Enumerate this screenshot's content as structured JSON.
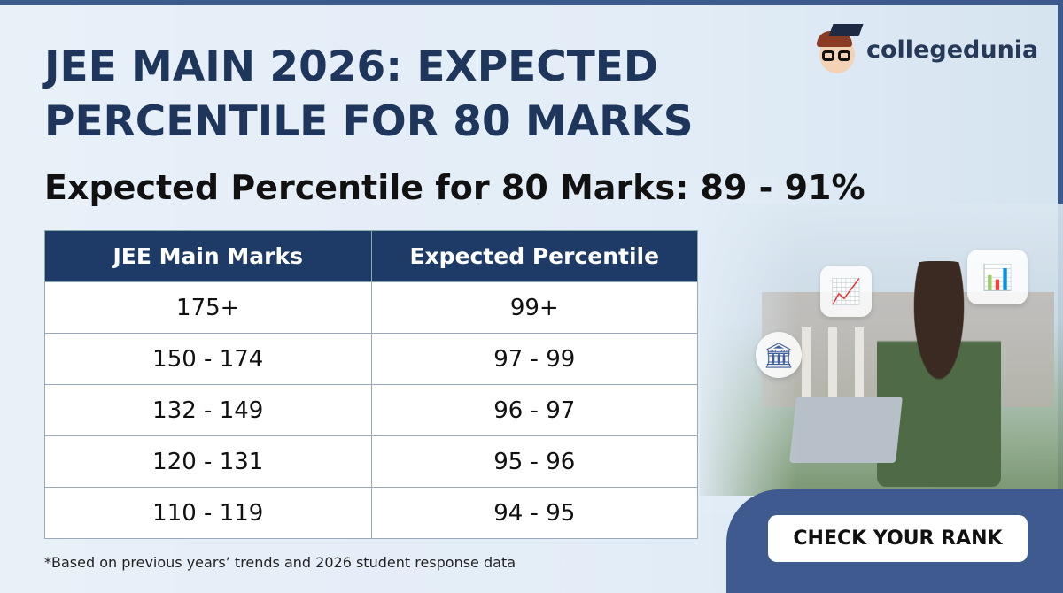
{
  "title": "JEE MAIN 2026: EXPECTED PERCENTILE FOR 80 MARKS",
  "title_line1": "JEE MAIN 2026: EXPECTED",
  "title_line2": "PERCENTILE FOR 80 MARKS",
  "subtitle": "Expected Percentile for 80 Marks: 89 - 91%",
  "logo": {
    "text": "collegedunia"
  },
  "table": {
    "headers": [
      "JEE Main Marks",
      "Expected Percentile"
    ],
    "rows": [
      [
        "175+",
        "99+"
      ],
      [
        "150 - 174",
        "97 - 99"
      ],
      [
        "132 - 149",
        "96 - 97"
      ],
      [
        "120 - 131",
        "95 - 96"
      ],
      [
        "110 - 119",
        "94 - 95"
      ]
    ]
  },
  "footnote": "*Based on previous years’ trends and 2026 student response data",
  "cta": "CHECK YOUR RANK",
  "colors": {
    "navy": "#1e365c",
    "header_bg": "#1e3a66",
    "panel": "#3e5a8e"
  },
  "icons": [
    "bar-chart-icon",
    "growth-chart-icon",
    "school-icon"
  ]
}
